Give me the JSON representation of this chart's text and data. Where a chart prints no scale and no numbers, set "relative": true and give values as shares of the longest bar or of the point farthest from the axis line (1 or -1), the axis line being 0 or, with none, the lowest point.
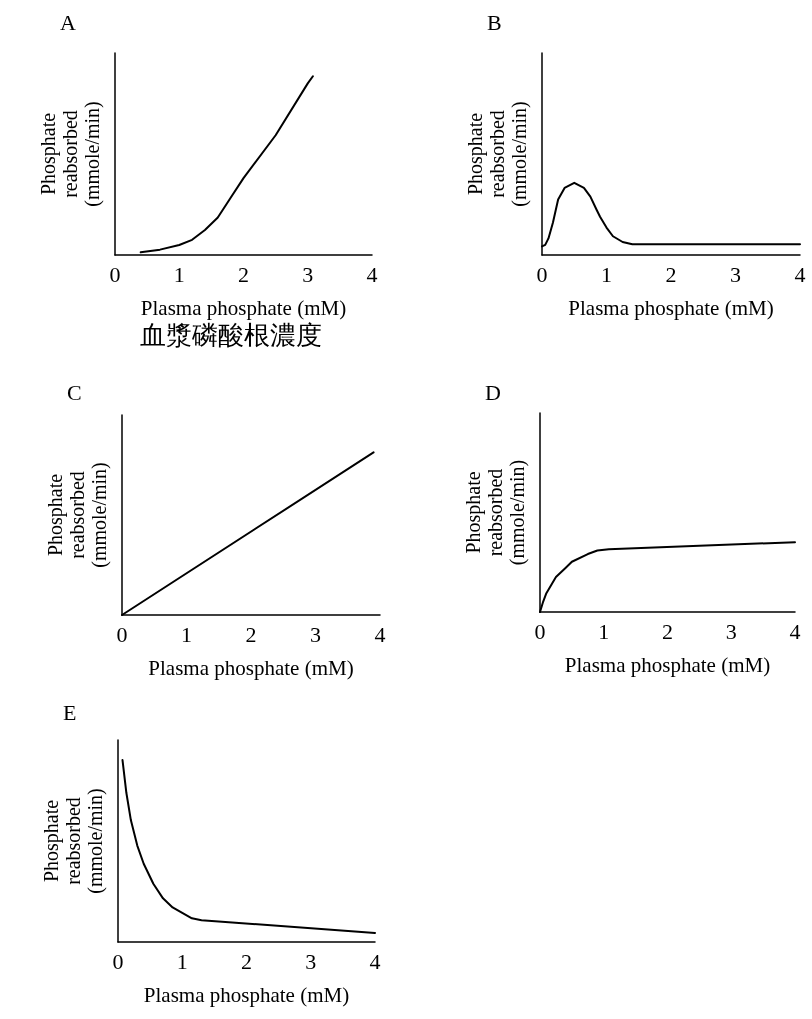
{
  "chart_data": [
    {
      "type": "line",
      "title": "A",
      "xlabel": "Plasma phosphate (mM)",
      "ylabel": "Phosphate reabsorbed (mmole/min)",
      "relative": true,
      "marker": "none",
      "xlim": [
        0,
        4
      ],
      "xticks": [
        0,
        1,
        2,
        3,
        4
      ],
      "annotations": [
        "血漿磷酸根濃度"
      ],
      "x": [
        0.4,
        0.7,
        1.0,
        1.2,
        1.4,
        1.6,
        1.8,
        2.0,
        2.5,
        3.0,
        3.08
      ],
      "values": [
        0.015,
        0.03,
        0.056,
        0.085,
        0.14,
        0.21,
        0.32,
        0.43,
        0.67,
        0.96,
        1.0
      ],
      "color": "#000000"
    },
    {
      "type": "line",
      "title": "B",
      "xlabel": "Plasma phosphate (mM)",
      "ylabel": "Phosphate reabsorbed (mmole/min)",
      "relative": true,
      "marker": "none",
      "xlim": [
        0,
        4
      ],
      "xticks": [
        0,
        1,
        2,
        3,
        4
      ],
      "x": [
        0,
        0.05,
        0.1,
        0.17,
        0.25,
        0.35,
        0.5,
        0.65,
        0.75,
        0.85,
        0.9,
        1.0,
        1.1,
        1.25,
        1.4,
        4
      ],
      "values": [
        0.12,
        0.14,
        0.23,
        0.45,
        0.77,
        0.93,
        1.0,
        0.93,
        0.81,
        0.62,
        0.53,
        0.38,
        0.26,
        0.18,
        0.15,
        0.15
      ],
      "color": "#000000"
    },
    {
      "type": "line",
      "title": "C",
      "xlabel": "Plasma phosphate (mM)",
      "ylabel": "Phosphate reabsorbed (mmole/min)",
      "relative": true,
      "marker": "none",
      "xlim": [
        0,
        4
      ],
      "xticks": [
        0,
        1,
        2,
        3,
        4
      ],
      "x": [
        0,
        3.9
      ],
      "values": [
        0,
        1.0
      ],
      "color": "#000000"
    },
    {
      "type": "line",
      "title": "D",
      "xlabel": "Plasma phosphate (mM)",
      "ylabel": "Phosphate reabsorbed (mmole/min)",
      "relative": true,
      "marker": "none",
      "xlim": [
        0,
        4
      ],
      "xticks": [
        0,
        1,
        2,
        3,
        4
      ],
      "x": [
        0,
        0.05,
        0.1,
        0.25,
        0.4,
        0.5,
        0.75,
        0.9,
        1.08,
        4
      ],
      "values": [
        0,
        0.15,
        0.27,
        0.5,
        0.63,
        0.72,
        0.83,
        0.88,
        0.9,
        1.0
      ],
      "color": "#000000"
    },
    {
      "type": "line",
      "title": "E",
      "xlabel": "Plasma phosphate (mM)",
      "ylabel": "Phosphate reabsorbed (mmole/min)",
      "relative": true,
      "marker": "none",
      "xlim": [
        0,
        4
      ],
      "xticks": [
        0,
        1,
        2,
        3,
        4
      ],
      "x": [
        0.07,
        0.13,
        0.2,
        0.3,
        0.4,
        0.55,
        0.7,
        0.85,
        1.0,
        1.15,
        1.3,
        4
      ],
      "values": [
        1.0,
        0.82,
        0.67,
        0.53,
        0.43,
        0.32,
        0.24,
        0.19,
        0.16,
        0.13,
        0.12,
        0.05
      ],
      "color": "#000000"
    }
  ]
}
